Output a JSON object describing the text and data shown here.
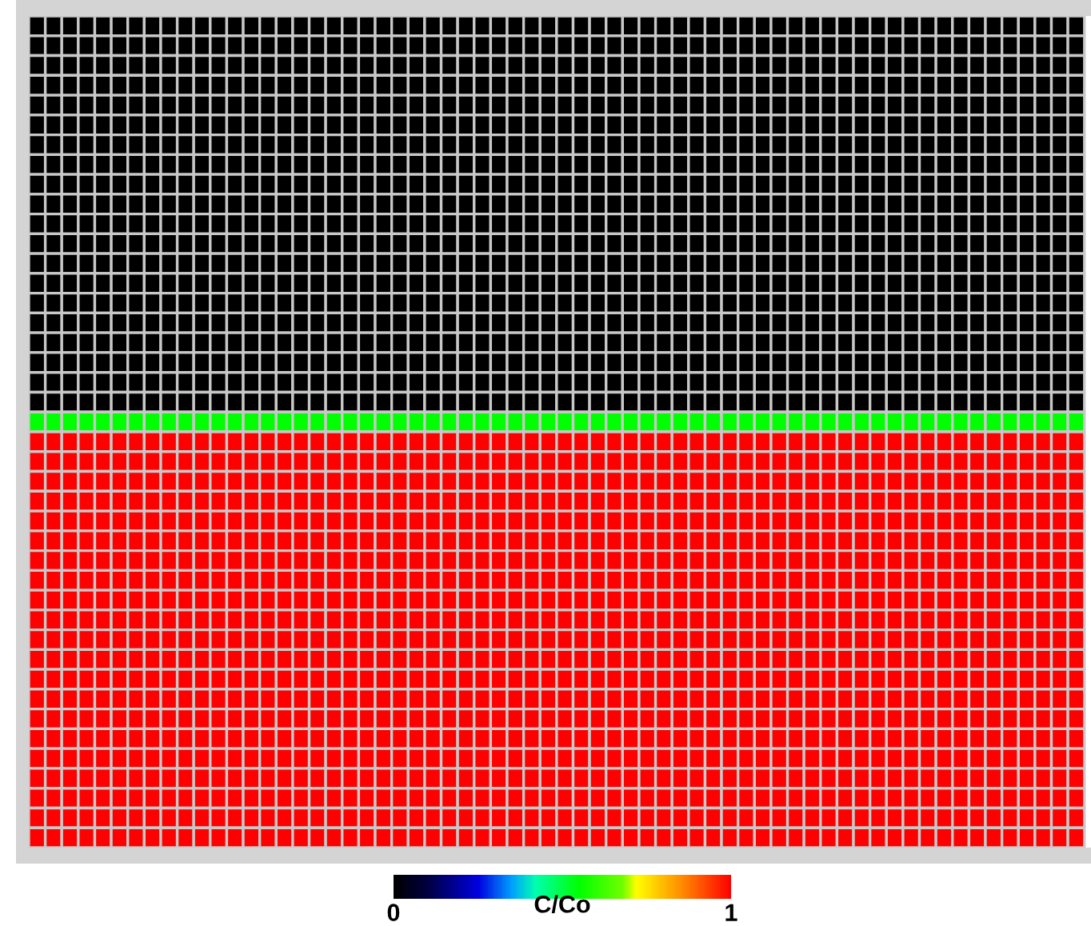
{
  "chart_data": {
    "type": "heatmap",
    "clabel": "C/Co",
    "clim": [
      0,
      1
    ],
    "cticks": [
      0,
      1
    ],
    "categories": [
      null,
      null,
      null,
      null,
      null,
      null,
      null,
      null,
      null,
      null,
      null,
      null,
      null,
      null,
      null,
      null,
      null,
      null,
      null,
      null,
      null,
      null,
      null,
      null,
      null,
      null,
      null,
      null,
      null,
      null,
      null,
      null,
      null,
      null,
      null,
      null,
      null,
      null,
      null,
      null,
      null,
      null,
      null,
      null,
      null,
      null,
      null,
      null,
      null,
      null,
      null,
      null,
      null,
      null,
      null,
      null,
      null,
      null,
      null,
      null,
      null,
      null,
      null,
      null
    ],
    "y_categories": [
      null,
      null,
      null,
      null,
      null,
      null,
      null,
      null,
      null,
      null,
      null,
      null,
      null,
      null,
      null,
      null,
      null,
      null,
      null,
      null,
      null,
      null,
      null,
      null,
      null,
      null,
      null,
      null,
      null,
      null,
      null,
      null,
      null,
      null,
      null,
      null,
      null,
      null,
      null,
      null,
      null,
      null
    ],
    "cells": [
      [
        0,
        0,
        0,
        0,
        0,
        0,
        0,
        0,
        0,
        0,
        0,
        0,
        0,
        0,
        0,
        0,
        0,
        0,
        0,
        0,
        0,
        0,
        0,
        0,
        0,
        0,
        0,
        0,
        0,
        0,
        0,
        0,
        0,
        0,
        0,
        0,
        0,
        0,
        0,
        0,
        0,
        0,
        0,
        0,
        0,
        0,
        0,
        0,
        0,
        0,
        0,
        0,
        0,
        0,
        0,
        0,
        0,
        0,
        0,
        0,
        0,
        0,
        0,
        0
      ],
      [
        0,
        0,
        0,
        0,
        0,
        0,
        0,
        0,
        0,
        0,
        0,
        0,
        0,
        0,
        0,
        0,
        0,
        0,
        0,
        0,
        0,
        0,
        0,
        0,
        0,
        0,
        0,
        0,
        0,
        0,
        0,
        0,
        0,
        0,
        0,
        0,
        0,
        0,
        0,
        0,
        0,
        0,
        0,
        0,
        0,
        0,
        0,
        0,
        0,
        0,
        0,
        0,
        0,
        0,
        0,
        0,
        0,
        0,
        0,
        0,
        0,
        0,
        0,
        0
      ],
      [
        0,
        0,
        0,
        0,
        0,
        0,
        0,
        0,
        0,
        0,
        0,
        0,
        0,
        0,
        0,
        0,
        0,
        0,
        0,
        0,
        0,
        0,
        0,
        0,
        0,
        0,
        0,
        0,
        0,
        0,
        0,
        0,
        0,
        0,
        0,
        0,
        0,
        0,
        0,
        0,
        0,
        0,
        0,
        0,
        0,
        0,
        0,
        0,
        0,
        0,
        0,
        0,
        0,
        0,
        0,
        0,
        0,
        0,
        0,
        0,
        0,
        0,
        0,
        0
      ],
      [
        0,
        0,
        0,
        0,
        0,
        0,
        0,
        0,
        0,
        0,
        0,
        0,
        0,
        0,
        0,
        0,
        0,
        0,
        0,
        0,
        0,
        0,
        0,
        0,
        0,
        0,
        0,
        0,
        0,
        0,
        0,
        0,
        0,
        0,
        0,
        0,
        0,
        0,
        0,
        0,
        0,
        0,
        0,
        0,
        0,
        0,
        0,
        0,
        0,
        0,
        0,
        0,
        0,
        0,
        0,
        0,
        0,
        0,
        0,
        0,
        0,
        0,
        0,
        0
      ],
      [
        0,
        0,
        0,
        0,
        0,
        0,
        0,
        0,
        0,
        0,
        0,
        0,
        0,
        0,
        0,
        0,
        0,
        0,
        0,
        0,
        0,
        0,
        0,
        0,
        0,
        0,
        0,
        0,
        0,
        0,
        0,
        0,
        0,
        0,
        0,
        0,
        0,
        0,
        0,
        0,
        0,
        0,
        0,
        0,
        0,
        0,
        0,
        0,
        0,
        0,
        0,
        0,
        0,
        0,
        0,
        0,
        0,
        0,
        0,
        0,
        0,
        0,
        0,
        0
      ],
      [
        0,
        0,
        0,
        0,
        0,
        0,
        0,
        0,
        0,
        0,
        0,
        0,
        0,
        0,
        0,
        0,
        0,
        0,
        0,
        0,
        0,
        0,
        0,
        0,
        0,
        0,
        0,
        0,
        0,
        0,
        0,
        0,
        0,
        0,
        0,
        0,
        0,
        0,
        0,
        0,
        0,
        0,
        0,
        0,
        0,
        0,
        0,
        0,
        0,
        0,
        0,
        0,
        0,
        0,
        0,
        0,
        0,
        0,
        0,
        0,
        0,
        0,
        0,
        0
      ],
      [
        0,
        0,
        0,
        0,
        0,
        0,
        0,
        0,
        0,
        0,
        0,
        0,
        0,
        0,
        0,
        0,
        0,
        0,
        0,
        0,
        0,
        0,
        0,
        0,
        0,
        0,
        0,
        0,
        0,
        0,
        0,
        0,
        0,
        0,
        0,
        0,
        0,
        0,
        0,
        0,
        0,
        0,
        0,
        0,
        0,
        0,
        0,
        0,
        0,
        0,
        0,
        0,
        0,
        0,
        0,
        0,
        0,
        0,
        0,
        0,
        0,
        0,
        0,
        0
      ],
      [
        0,
        0,
        0,
        0,
        0,
        0,
        0,
        0,
        0,
        0,
        0,
        0,
        0,
        0,
        0,
        0,
        0,
        0,
        0,
        0,
        0,
        0,
        0,
        0,
        0,
        0,
        0,
        0,
        0,
        0,
        0,
        0,
        0,
        0,
        0,
        0,
        0,
        0,
        0,
        0,
        0,
        0,
        0,
        0,
        0,
        0,
        0,
        0,
        0,
        0,
        0,
        0,
        0,
        0,
        0,
        0,
        0,
        0,
        0,
        0,
        0,
        0,
        0,
        0
      ],
      [
        0,
        0,
        0,
        0,
        0,
        0,
        0,
        0,
        0,
        0,
        0,
        0,
        0,
        0,
        0,
        0,
        0,
        0,
        0,
        0,
        0,
        0,
        0,
        0,
        0,
        0,
        0,
        0,
        0,
        0,
        0,
        0,
        0,
        0,
        0,
        0,
        0,
        0,
        0,
        0,
        0,
        0,
        0,
        0,
        0,
        0,
        0,
        0,
        0,
        0,
        0,
        0,
        0,
        0,
        0,
        0,
        0,
        0,
        0,
        0,
        0,
        0,
        0,
        0
      ],
      [
        0,
        0,
        0,
        0,
        0,
        0,
        0,
        0,
        0,
        0,
        0,
        0,
        0,
        0,
        0,
        0,
        0,
        0,
        0,
        0,
        0,
        0,
        0,
        0,
        0,
        0,
        0,
        0,
        0,
        0,
        0,
        0,
        0,
        0,
        0,
        0,
        0,
        0,
        0,
        0,
        0,
        0,
        0,
        0,
        0,
        0,
        0,
        0,
        0,
        0,
        0,
        0,
        0,
        0,
        0,
        0,
        0,
        0,
        0,
        0,
        0,
        0,
        0,
        0
      ],
      [
        0,
        0,
        0,
        0,
        0,
        0,
        0,
        0,
        0,
        0,
        0,
        0,
        0,
        0,
        0,
        0,
        0,
        0,
        0,
        0,
        0,
        0,
        0,
        0,
        0,
        0,
        0,
        0,
        0,
        0,
        0,
        0,
        0,
        0,
        0,
        0,
        0,
        0,
        0,
        0,
        0,
        0,
        0,
        0,
        0,
        0,
        0,
        0,
        0,
        0,
        0,
        0,
        0,
        0,
        0,
        0,
        0,
        0,
        0,
        0,
        0,
        0,
        0,
        0
      ],
      [
        0,
        0,
        0,
        0,
        0,
        0,
        0,
        0,
        0,
        0,
        0,
        0,
        0,
        0,
        0,
        0,
        0,
        0,
        0,
        0,
        0,
        0,
        0,
        0,
        0,
        0,
        0,
        0,
        0,
        0,
        0,
        0,
        0,
        0,
        0,
        0,
        0,
        0,
        0,
        0,
        0,
        0,
        0,
        0,
        0,
        0,
        0,
        0,
        0,
        0,
        0,
        0,
        0,
        0,
        0,
        0,
        0,
        0,
        0,
        0,
        0,
        0,
        0,
        0
      ],
      [
        0,
        0,
        0,
        0,
        0,
        0,
        0,
        0,
        0,
        0,
        0,
        0,
        0,
        0,
        0,
        0,
        0,
        0,
        0,
        0,
        0,
        0,
        0,
        0,
        0,
        0,
        0,
        0,
        0,
        0,
        0,
        0,
        0,
        0,
        0,
        0,
        0,
        0,
        0,
        0,
        0,
        0,
        0,
        0,
        0,
        0,
        0,
        0,
        0,
        0,
        0,
        0,
        0,
        0,
        0,
        0,
        0,
        0,
        0,
        0,
        0,
        0,
        0,
        0
      ],
      [
        0,
        0,
        0,
        0,
        0,
        0,
        0,
        0,
        0,
        0,
        0,
        0,
        0,
        0,
        0,
        0,
        0,
        0,
        0,
        0,
        0,
        0,
        0,
        0,
        0,
        0,
        0,
        0,
        0,
        0,
        0,
        0,
        0,
        0,
        0,
        0,
        0,
        0,
        0,
        0,
        0,
        0,
        0,
        0,
        0,
        0,
        0,
        0,
        0,
        0,
        0,
        0,
        0,
        0,
        0,
        0,
        0,
        0,
        0,
        0,
        0,
        0,
        0,
        0
      ],
      [
        0,
        0,
        0,
        0,
        0,
        0,
        0,
        0,
        0,
        0,
        0,
        0,
        0,
        0,
        0,
        0,
        0,
        0,
        0,
        0,
        0,
        0,
        0,
        0,
        0,
        0,
        0,
        0,
        0,
        0,
        0,
        0,
        0,
        0,
        0,
        0,
        0,
        0,
        0,
        0,
        0,
        0,
        0,
        0,
        0,
        0,
        0,
        0,
        0,
        0,
        0,
        0,
        0,
        0,
        0,
        0,
        0,
        0,
        0,
        0,
        0,
        0,
        0,
        0
      ],
      [
        0,
        0,
        0,
        0,
        0,
        0,
        0,
        0,
        0,
        0,
        0,
        0,
        0,
        0,
        0,
        0,
        0,
        0,
        0,
        0,
        0,
        0,
        0,
        0,
        0,
        0,
        0,
        0,
        0,
        0,
        0,
        0,
        0,
        0,
        0,
        0,
        0,
        0,
        0,
        0,
        0,
        0,
        0,
        0,
        0,
        0,
        0,
        0,
        0,
        0,
        0,
        0,
        0,
        0,
        0,
        0,
        0,
        0,
        0,
        0,
        0,
        0,
        0,
        0
      ],
      [
        0,
        0,
        0,
        0,
        0,
        0,
        0,
        0,
        0,
        0,
        0,
        0,
        0,
        0,
        0,
        0,
        0,
        0,
        0,
        0,
        0,
        0,
        0,
        0,
        0,
        0,
        0,
        0,
        0,
        0,
        0,
        0,
        0,
        0,
        0,
        0,
        0,
        0,
        0,
        0,
        0,
        0,
        0,
        0,
        0,
        0,
        0,
        0,
        0,
        0,
        0,
        0,
        0,
        0,
        0,
        0,
        0,
        0,
        0,
        0,
        0,
        0,
        0,
        0
      ],
      [
        0,
        0,
        0,
        0,
        0,
        0,
        0,
        0,
        0,
        0,
        0,
        0,
        0,
        0,
        0,
        0,
        0,
        0,
        0,
        0,
        0,
        0,
        0,
        0,
        0,
        0,
        0,
        0,
        0,
        0,
        0,
        0,
        0,
        0,
        0,
        0,
        0,
        0,
        0,
        0,
        0,
        0,
        0,
        0,
        0,
        0,
        0,
        0,
        0,
        0,
        0,
        0,
        0,
        0,
        0,
        0,
        0,
        0,
        0,
        0,
        0,
        0,
        0,
        0
      ],
      [
        0,
        0,
        0,
        0,
        0,
        0,
        0,
        0,
        0,
        0,
        0,
        0,
        0,
        0,
        0,
        0,
        0,
        0,
        0,
        0,
        0,
        0,
        0,
        0,
        0,
        0,
        0,
        0,
        0,
        0,
        0,
        0,
        0,
        0,
        0,
        0,
        0,
        0,
        0,
        0,
        0,
        0,
        0,
        0,
        0,
        0,
        0,
        0,
        0,
        0,
        0,
        0,
        0,
        0,
        0,
        0,
        0,
        0,
        0,
        0,
        0,
        0,
        0,
        0
      ],
      [
        0,
        0,
        0,
        0,
        0,
        0,
        0,
        0,
        0,
        0,
        0,
        0,
        0,
        0,
        0,
        0,
        0,
        0,
        0,
        0,
        0,
        0,
        0,
        0,
        0,
        0,
        0,
        0,
        0,
        0,
        0,
        0,
        0,
        0,
        0,
        0,
        0,
        0,
        0,
        0,
        0,
        0,
        0,
        0,
        0,
        0,
        0,
        0,
        0,
        0,
        0,
        0,
        0,
        0,
        0,
        0,
        0,
        0,
        0,
        0,
        0,
        0,
        0,
        0
      ],
      [
        0.55,
        0.55,
        0.55,
        0.55,
        0.55,
        0.55,
        0.55,
        0.55,
        0.55,
        0.55,
        0.55,
        0.55,
        0.55,
        0.55,
        0.55,
        0.55,
        0.55,
        0.55,
        0.55,
        0.55,
        0.55,
        0.55,
        0.55,
        0.55,
        0.55,
        0.55,
        0.55,
        0.55,
        0.55,
        0.55,
        0.55,
        0.55,
        0.55,
        0.55,
        0.55,
        0.55,
        0.55,
        0.55,
        0.55,
        0.55,
        0.55,
        0.55,
        0.55,
        0.55,
        0.55,
        0.55,
        0.55,
        0.55,
        0.55,
        0.55,
        0.55,
        0.55,
        0.55,
        0.55,
        0.55,
        0.55,
        0.55,
        0.55,
        0.55,
        0.55,
        0.55,
        0.55,
        0.55,
        0.55
      ],
      [
        1,
        1,
        1,
        1,
        1,
        1,
        1,
        1,
        1,
        1,
        1,
        1,
        1,
        1,
        1,
        1,
        1,
        1,
        1,
        1,
        1,
        1,
        1,
        1,
        1,
        1,
        1,
        1,
        1,
        1,
        1,
        1,
        1,
        1,
        1,
        1,
        1,
        1,
        1,
        1,
        1,
        1,
        1,
        1,
        1,
        1,
        1,
        1,
        1,
        1,
        1,
        1,
        1,
        1,
        1,
        1,
        1,
        1,
        1,
        1,
        1,
        1,
        1,
        1
      ],
      [
        1,
        1,
        1,
        1,
        1,
        1,
        1,
        1,
        1,
        1,
        1,
        1,
        1,
        1,
        1,
        1,
        1,
        1,
        1,
        1,
        1,
        1,
        1,
        1,
        1,
        1,
        1,
        1,
        1,
        1,
        1,
        1,
        1,
        1,
        1,
        1,
        1,
        1,
        1,
        1,
        1,
        1,
        1,
        1,
        1,
        1,
        1,
        1,
        1,
        1,
        1,
        1,
        1,
        1,
        1,
        1,
        1,
        1,
        1,
        1,
        1,
        1,
        1,
        1
      ],
      [
        1,
        1,
        1,
        1,
        1,
        1,
        1,
        1,
        1,
        1,
        1,
        1,
        1,
        1,
        1,
        1,
        1,
        1,
        1,
        1,
        1,
        1,
        1,
        1,
        1,
        1,
        1,
        1,
        1,
        1,
        1,
        1,
        1,
        1,
        1,
        1,
        1,
        1,
        1,
        1,
        1,
        1,
        1,
        1,
        1,
        1,
        1,
        1,
        1,
        1,
        1,
        1,
        1,
        1,
        1,
        1,
        1,
        1,
        1,
        1,
        1,
        1,
        1,
        1
      ],
      [
        1,
        1,
        1,
        1,
        1,
        1,
        1,
        1,
        1,
        1,
        1,
        1,
        1,
        1,
        1,
        1,
        1,
        1,
        1,
        1,
        1,
        1,
        1,
        1,
        1,
        1,
        1,
        1,
        1,
        1,
        1,
        1,
        1,
        1,
        1,
        1,
        1,
        1,
        1,
        1,
        1,
        1,
        1,
        1,
        1,
        1,
        1,
        1,
        1,
        1,
        1,
        1,
        1,
        1,
        1,
        1,
        1,
        1,
        1,
        1,
        1,
        1,
        1,
        1
      ],
      [
        1,
        1,
        1,
        1,
        1,
        1,
        1,
        1,
        1,
        1,
        1,
        1,
        1,
        1,
        1,
        1,
        1,
        1,
        1,
        1,
        1,
        1,
        1,
        1,
        1,
        1,
        1,
        1,
        1,
        1,
        1,
        1,
        1,
        1,
        1,
        1,
        1,
        1,
        1,
        1,
        1,
        1,
        1,
        1,
        1,
        1,
        1,
        1,
        1,
        1,
        1,
        1,
        1,
        1,
        1,
        1,
        1,
        1,
        1,
        1,
        1,
        1,
        1,
        1
      ],
      [
        1,
        1,
        1,
        1,
        1,
        1,
        1,
        1,
        1,
        1,
        1,
        1,
        1,
        1,
        1,
        1,
        1,
        1,
        1,
        1,
        1,
        1,
        1,
        1,
        1,
        1,
        1,
        1,
        1,
        1,
        1,
        1,
        1,
        1,
        1,
        1,
        1,
        1,
        1,
        1,
        1,
        1,
        1,
        1,
        1,
        1,
        1,
        1,
        1,
        1,
        1,
        1,
        1,
        1,
        1,
        1,
        1,
        1,
        1,
        1,
        1,
        1,
        1,
        1
      ],
      [
        1,
        1,
        1,
        1,
        1,
        1,
        1,
        1,
        1,
        1,
        1,
        1,
        1,
        1,
        1,
        1,
        1,
        1,
        1,
        1,
        1,
        1,
        1,
        1,
        1,
        1,
        1,
        1,
        1,
        1,
        1,
        1,
        1,
        1,
        1,
        1,
        1,
        1,
        1,
        1,
        1,
        1,
        1,
        1,
        1,
        1,
        1,
        1,
        1,
        1,
        1,
        1,
        1,
        1,
        1,
        1,
        1,
        1,
        1,
        1,
        1,
        1,
        1,
        1
      ],
      [
        1,
        1,
        1,
        1,
        1,
        1,
        1,
        1,
        1,
        1,
        1,
        1,
        1,
        1,
        1,
        1,
        1,
        1,
        1,
        1,
        1,
        1,
        1,
        1,
        1,
        1,
        1,
        1,
        1,
        1,
        1,
        1,
        1,
        1,
        1,
        1,
        1,
        1,
        1,
        1,
        1,
        1,
        1,
        1,
        1,
        1,
        1,
        1,
        1,
        1,
        1,
        1,
        1,
        1,
        1,
        1,
        1,
        1,
        1,
        1,
        1,
        1,
        1,
        1
      ],
      [
        1,
        1,
        1,
        1,
        1,
        1,
        1,
        1,
        1,
        1,
        1,
        1,
        1,
        1,
        1,
        1,
        1,
        1,
        1,
        1,
        1,
        1,
        1,
        1,
        1,
        1,
        1,
        1,
        1,
        1,
        1,
        1,
        1,
        1,
        1,
        1,
        1,
        1,
        1,
        1,
        1,
        1,
        1,
        1,
        1,
        1,
        1,
        1,
        1,
        1,
        1,
        1,
        1,
        1,
        1,
        1,
        1,
        1,
        1,
        1,
        1,
        1,
        1,
        1
      ],
      [
        1,
        1,
        1,
        1,
        1,
        1,
        1,
        1,
        1,
        1,
        1,
        1,
        1,
        1,
        1,
        1,
        1,
        1,
        1,
        1,
        1,
        1,
        1,
        1,
        1,
        1,
        1,
        1,
        1,
        1,
        1,
        1,
        1,
        1,
        1,
        1,
        1,
        1,
        1,
        1,
        1,
        1,
        1,
        1,
        1,
        1,
        1,
        1,
        1,
        1,
        1,
        1,
        1,
        1,
        1,
        1,
        1,
        1,
        1,
        1,
        1,
        1,
        1,
        1
      ],
      [
        1,
        1,
        1,
        1,
        1,
        1,
        1,
        1,
        1,
        1,
        1,
        1,
        1,
        1,
        1,
        1,
        1,
        1,
        1,
        1,
        1,
        1,
        1,
        1,
        1,
        1,
        1,
        1,
        1,
        1,
        1,
        1,
        1,
        1,
        1,
        1,
        1,
        1,
        1,
        1,
        1,
        1,
        1,
        1,
        1,
        1,
        1,
        1,
        1,
        1,
        1,
        1,
        1,
        1,
        1,
        1,
        1,
        1,
        1,
        1,
        1,
        1,
        1,
        1
      ],
      [
        1,
        1,
        1,
        1,
        1,
        1,
        1,
        1,
        1,
        1,
        1,
        1,
        1,
        1,
        1,
        1,
        1,
        1,
        1,
        1,
        1,
        1,
        1,
        1,
        1,
        1,
        1,
        1,
        1,
        1,
        1,
        1,
        1,
        1,
        1,
        1,
        1,
        1,
        1,
        1,
        1,
        1,
        1,
        1,
        1,
        1,
        1,
        1,
        1,
        1,
        1,
        1,
        1,
        1,
        1,
        1,
        1,
        1,
        1,
        1,
        1,
        1,
        1,
        1
      ],
      [
        1,
        1,
        1,
        1,
        1,
        1,
        1,
        1,
        1,
        1,
        1,
        1,
        1,
        1,
        1,
        1,
        1,
        1,
        1,
        1,
        1,
        1,
        1,
        1,
        1,
        1,
        1,
        1,
        1,
        1,
        1,
        1,
        1,
        1,
        1,
        1,
        1,
        1,
        1,
        1,
        1,
        1,
        1,
        1,
        1,
        1,
        1,
        1,
        1,
        1,
        1,
        1,
        1,
        1,
        1,
        1,
        1,
        1,
        1,
        1,
        1,
        1,
        1,
        1
      ],
      [
        1,
        1,
        1,
        1,
        1,
        1,
        1,
        1,
        1,
        1,
        1,
        1,
        1,
        1,
        1,
        1,
        1,
        1,
        1,
        1,
        1,
        1,
        1,
        1,
        1,
        1,
        1,
        1,
        1,
        1,
        1,
        1,
        1,
        1,
        1,
        1,
        1,
        1,
        1,
        1,
        1,
        1,
        1,
        1,
        1,
        1,
        1,
        1,
        1,
        1,
        1,
        1,
        1,
        1,
        1,
        1,
        1,
        1,
        1,
        1,
        1,
        1,
        1,
        1
      ],
      [
        1,
        1,
        1,
        1,
        1,
        1,
        1,
        1,
        1,
        1,
        1,
        1,
        1,
        1,
        1,
        1,
        1,
        1,
        1,
        1,
        1,
        1,
        1,
        1,
        1,
        1,
        1,
        1,
        1,
        1,
        1,
        1,
        1,
        1,
        1,
        1,
        1,
        1,
        1,
        1,
        1,
        1,
        1,
        1,
        1,
        1,
        1,
        1,
        1,
        1,
        1,
        1,
        1,
        1,
        1,
        1,
        1,
        1,
        1,
        1,
        1,
        1,
        1,
        1
      ],
      [
        1,
        1,
        1,
        1,
        1,
        1,
        1,
        1,
        1,
        1,
        1,
        1,
        1,
        1,
        1,
        1,
        1,
        1,
        1,
        1,
        1,
        1,
        1,
        1,
        1,
        1,
        1,
        1,
        1,
        1,
        1,
        1,
        1,
        1,
        1,
        1,
        1,
        1,
        1,
        1,
        1,
        1,
        1,
        1,
        1,
        1,
        1,
        1,
        1,
        1,
        1,
        1,
        1,
        1,
        1,
        1,
        1,
        1,
        1,
        1,
        1,
        1,
        1,
        1
      ],
      [
        1,
        1,
        1,
        1,
        1,
        1,
        1,
        1,
        1,
        1,
        1,
        1,
        1,
        1,
        1,
        1,
        1,
        1,
        1,
        1,
        1,
        1,
        1,
        1,
        1,
        1,
        1,
        1,
        1,
        1,
        1,
        1,
        1,
        1,
        1,
        1,
        1,
        1,
        1,
        1,
        1,
        1,
        1,
        1,
        1,
        1,
        1,
        1,
        1,
        1,
        1,
        1,
        1,
        1,
        1,
        1,
        1,
        1,
        1,
        1,
        1,
        1,
        1,
        1
      ],
      [
        1,
        1,
        1,
        1,
        1,
        1,
        1,
        1,
        1,
        1,
        1,
        1,
        1,
        1,
        1,
        1,
        1,
        1,
        1,
        1,
        1,
        1,
        1,
        1,
        1,
        1,
        1,
        1,
        1,
        1,
        1,
        1,
        1,
        1,
        1,
        1,
        1,
        1,
        1,
        1,
        1,
        1,
        1,
        1,
        1,
        1,
        1,
        1,
        1,
        1,
        1,
        1,
        1,
        1,
        1,
        1,
        1,
        1,
        1,
        1,
        1,
        1,
        1,
        1
      ],
      [
        1,
        1,
        1,
        1,
        1,
        1,
        1,
        1,
        1,
        1,
        1,
        1,
        1,
        1,
        1,
        1,
        1,
        1,
        1,
        1,
        1,
        1,
        1,
        1,
        1,
        1,
        1,
        1,
        1,
        1,
        1,
        1,
        1,
        1,
        1,
        1,
        1,
        1,
        1,
        1,
        1,
        1,
        1,
        1,
        1,
        1,
        1,
        1,
        1,
        1,
        1,
        1,
        1,
        1,
        1,
        1,
        1,
        1,
        1,
        1,
        1,
        1,
        1,
        1
      ],
      [
        1,
        1,
        1,
        1,
        1,
        1,
        1,
        1,
        1,
        1,
        1,
        1,
        1,
        1,
        1,
        1,
        1,
        1,
        1,
        1,
        1,
        1,
        1,
        1,
        1,
        1,
        1,
        1,
        1,
        1,
        1,
        1,
        1,
        1,
        1,
        1,
        1,
        1,
        1,
        1,
        1,
        1,
        1,
        1,
        1,
        1,
        1,
        1,
        1,
        1,
        1,
        1,
        1,
        1,
        1,
        1,
        1,
        1,
        1,
        1,
        1,
        1,
        1,
        1
      ],
      [
        1,
        1,
        1,
        1,
        1,
        1,
        1,
        1,
        1,
        1,
        1,
        1,
        1,
        1,
        1,
        1,
        1,
        1,
        1,
        1,
        1,
        1,
        1,
        1,
        1,
        1,
        1,
        1,
        1,
        1,
        1,
        1,
        1,
        1,
        1,
        1,
        1,
        1,
        1,
        1,
        1,
        1,
        1,
        1,
        1,
        1,
        1,
        1,
        1,
        1,
        1,
        1,
        1,
        1,
        1,
        1,
        1,
        1,
        1,
        1,
        1,
        1,
        1,
        1
      ]
    ]
  }
}
